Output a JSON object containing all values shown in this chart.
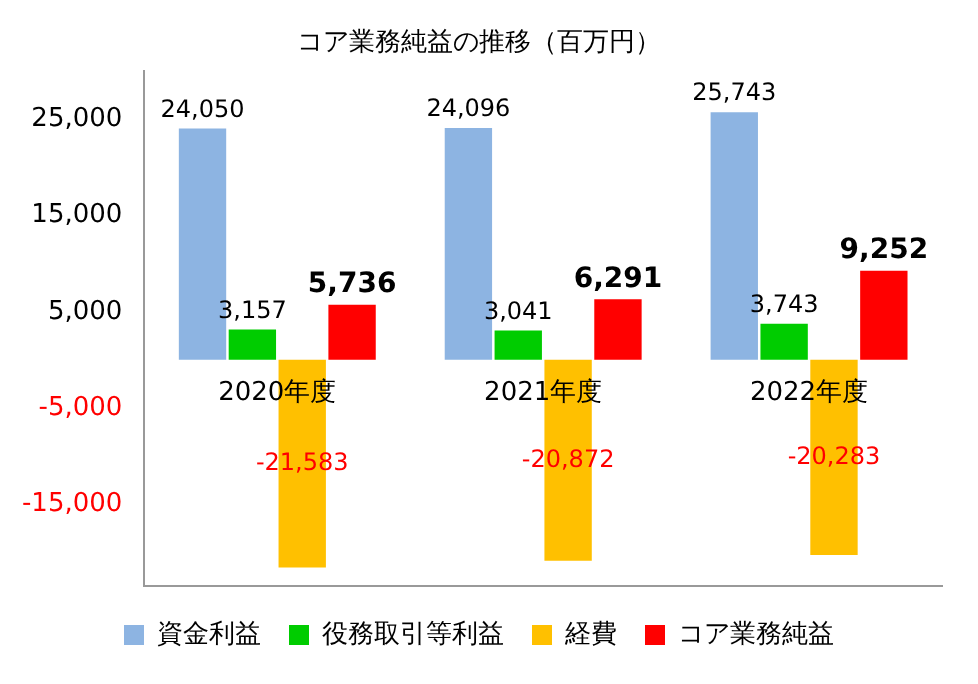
{
  "chart_data": {
    "type": "bar",
    "title": "コア業務純益の推移（百万円）",
    "categories": [
      "2020年度",
      "2021年度",
      "2022年度"
    ],
    "series": [
      {
        "name": "資金利益",
        "color": "#8db4e2",
        "values": [
          24050,
          24096,
          25743
        ],
        "value_labels": [
          "24,050",
          "24,096",
          "25,743"
        ]
      },
      {
        "name": "役務取引等利益",
        "color": "#00cc00",
        "values": [
          3157,
          3041,
          3743
        ],
        "value_labels": [
          "3,157",
          "3,041",
          "3,743"
        ]
      },
      {
        "name": "経費",
        "color": "#ffc000",
        "values": [
          -21583,
          -20872,
          -20283
        ],
        "value_labels": [
          "-21,583",
          "-20,872",
          "-20,283"
        ]
      },
      {
        "name": "コア業務純益",
        "color": "#ff0000",
        "values": [
          5736,
          6291,
          9252
        ],
        "value_labels": [
          "5,736",
          "6,291",
          "9,252"
        ]
      }
    ],
    "ylim": [
      -23500,
      30000
    ],
    "yticks": [
      {
        "value": 25000,
        "label": "25,000"
      },
      {
        "value": 15000,
        "label": "15,000"
      },
      {
        "value": 5000,
        "label": "5,000"
      },
      {
        "value": -5000,
        "label": "-5,000"
      },
      {
        "value": -15000,
        "label": "-15,000"
      }
    ],
    "grid": false,
    "legend": "bottom"
  }
}
